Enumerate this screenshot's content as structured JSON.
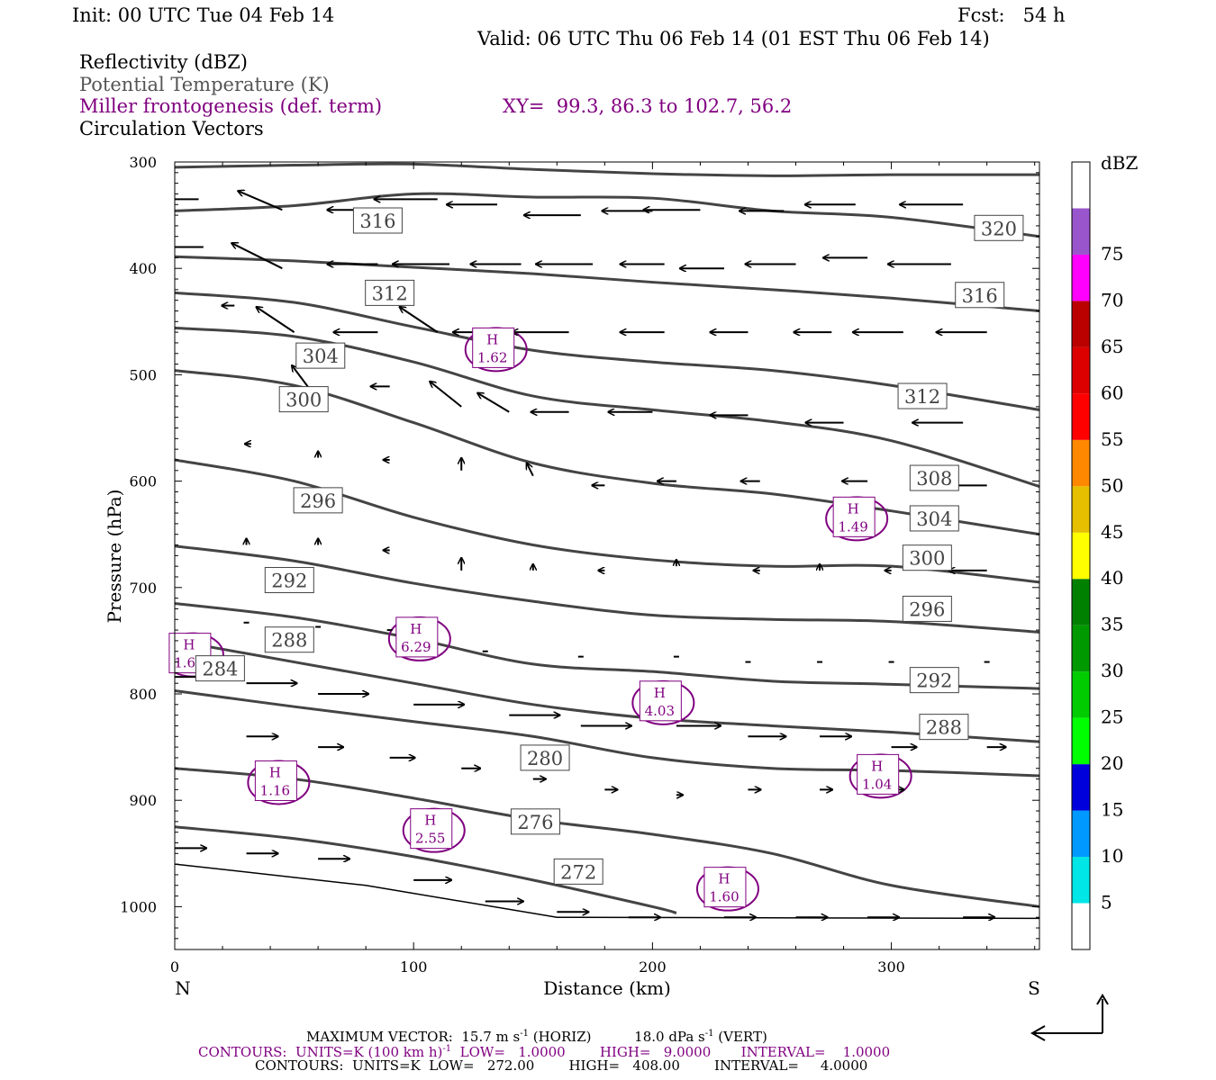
{
  "header": {
    "init": "Init: 00 UTC Tue 04 Feb 14",
    "fcst": "Fcst:   54 h",
    "valid": "Valid: 06 UTC Thu 06 Feb 14 (01 EST Thu 06 Feb 14)",
    "fields": [
      "Reflectivity (dBZ)",
      "Potential Temperature (K)",
      "Miller frontogenesis (def. term)",
      "Circulation Vectors"
    ],
    "xy": "XY=  99.3, 86.3 to 102.7, 56.2"
  },
  "footer": {
    "max_vector_a": "MAXIMUM VECTOR:  15.7 m s",
    "max_vector_a_sup": "-1",
    "max_vector_b": " (HORIZ)          18.0 dPa s",
    "max_vector_b_sup": "-1",
    "max_vector_c": " (VERT)",
    "contours_front_a": "CONTOURS:  UNITS=K (100 km h)",
    "contours_front_sup": "-1",
    "contours_front_b": "  LOW=   1.0000        HIGH=   9.0000       INTERVAL=    1.0000",
    "contours_theta": "CONTOURS:  UNITS=K  LOW=   272.00        HIGH=   408.00        INTERVAL=     4.0000"
  },
  "colors": {
    "theta": "#444444",
    "frontogenesis": "#800080",
    "vector": "#000000"
  },
  "chart_data": {
    "type": "cross-section",
    "xlabel": "Distance (km)",
    "ylabel": "Pressure (hPa)",
    "xlim": [
      0,
      362
    ],
    "ylim": [
      1040,
      300
    ],
    "x_ticks": [
      0,
      100,
      200,
      300
    ],
    "y_ticks": [
      300,
      400,
      500,
      600,
      700,
      800,
      900,
      1000
    ],
    "x_end_labels": {
      "left": "N",
      "right": "S"
    },
    "colorbar": {
      "title": "dBZ",
      "levels": [
        5,
        10,
        15,
        20,
        25,
        30,
        35,
        40,
        45,
        50,
        55,
        60,
        65,
        70,
        75
      ],
      "colors": [
        "#ffffff",
        "#00e5e5",
        "#0099ff",
        "#0000dd",
        "#00ff00",
        "#00cc00",
        "#009900",
        "#008000",
        "#ffff00",
        "#e5bf00",
        "#ff8800",
        "#ff0000",
        "#dd0000",
        "#bb0000",
        "#ff00ff",
        "#9955cc",
        "#ffffff"
      ]
    },
    "theta_contours": [
      {
        "value": 320,
        "points": [
          [
            0,
            305
          ],
          [
            50,
            303
          ],
          [
            100,
            302
          ],
          [
            150,
            307
          ],
          [
            200,
            311
          ],
          [
            250,
            313
          ],
          [
            300,
            312
          ],
          [
            362,
            312
          ]
        ],
        "labels": []
      },
      {
        "value": 316,
        "points": [
          [
            0,
            346
          ],
          [
            50,
            341
          ],
          [
            100,
            330
          ],
          [
            150,
            333
          ],
          [
            200,
            334
          ],
          [
            250,
            346
          ],
          [
            300,
            352
          ],
          [
            362,
            370
          ]
        ],
        "labels": []
      },
      {
        "value": 312,
        "points": [
          [
            0,
            389
          ],
          [
            50,
            393
          ],
          [
            100,
            399
          ],
          [
            150,
            405
          ],
          [
            200,
            413
          ],
          [
            250,
            420
          ],
          [
            300,
            428
          ],
          [
            362,
            440
          ]
        ],
        "labels": []
      },
      {
        "value": 308,
        "points": [
          [
            0,
            423
          ],
          [
            50,
            432
          ],
          [
            100,
            455
          ],
          [
            150,
            477
          ],
          [
            200,
            488
          ],
          [
            250,
            496
          ],
          [
            300,
            510
          ],
          [
            362,
            533
          ]
        ],
        "labels": []
      },
      {
        "value": 304,
        "points": [
          [
            0,
            456
          ],
          [
            50,
            464
          ],
          [
            100,
            488
          ],
          [
            150,
            520
          ],
          [
            200,
            533
          ],
          [
            250,
            544
          ],
          [
            300,
            562
          ],
          [
            362,
            605
          ]
        ],
        "labels": []
      },
      {
        "value": 300,
        "points": [
          [
            0,
            496
          ],
          [
            50,
            510
          ],
          [
            100,
            545
          ],
          [
            150,
            583
          ],
          [
            200,
            602
          ],
          [
            250,
            612
          ],
          [
            300,
            628
          ],
          [
            362,
            650
          ]
        ],
        "labels": []
      },
      {
        "value": 296,
        "points": [
          [
            0,
            580
          ],
          [
            50,
            600
          ],
          [
            100,
            634
          ],
          [
            150,
            660
          ],
          [
            200,
            674
          ],
          [
            250,
            680
          ],
          [
            300,
            680
          ],
          [
            362,
            695
          ]
        ],
        "labels": []
      },
      {
        "value": 292,
        "points": [
          [
            0,
            661
          ],
          [
            50,
            675
          ],
          [
            100,
            696
          ],
          [
            150,
            713
          ],
          [
            200,
            726
          ],
          [
            250,
            730
          ],
          [
            300,
            732
          ],
          [
            362,
            742
          ]
        ],
        "labels": []
      },
      {
        "value": 288,
        "points": [
          [
            0,
            715
          ],
          [
            50,
            728
          ],
          [
            100,
            748
          ],
          [
            150,
            772
          ],
          [
            200,
            779
          ],
          [
            250,
            788
          ],
          [
            300,
            791
          ],
          [
            362,
            795
          ]
        ],
        "labels": []
      },
      {
        "value": 284,
        "points": [
          [
            0,
            750
          ],
          [
            50,
            770
          ],
          [
            100,
            790
          ],
          [
            150,
            810
          ],
          [
            200,
            823
          ],
          [
            250,
            830
          ],
          [
            300,
            836
          ],
          [
            362,
            845
          ]
        ],
        "labels": []
      },
      {
        "value": 280,
        "points": [
          [
            0,
            797
          ],
          [
            50,
            812
          ],
          [
            100,
            826
          ],
          [
            150,
            840
          ],
          [
            200,
            860
          ],
          [
            250,
            870
          ],
          [
            300,
            872
          ],
          [
            362,
            877
          ]
        ],
        "labels": []
      },
      {
        "value": 276,
        "points": [
          [
            0,
            870
          ],
          [
            50,
            880
          ],
          [
            100,
            898
          ],
          [
            150,
            918
          ],
          [
            200,
            932
          ],
          [
            250,
            950
          ],
          [
            300,
            980
          ],
          [
            362,
            1000
          ]
        ],
        "labels": []
      },
      {
        "value": 272,
        "points": [
          [
            0,
            925
          ],
          [
            50,
            936
          ],
          [
            100,
            953
          ],
          [
            150,
            975
          ],
          [
            200,
            1000
          ],
          [
            210,
            1006
          ]
        ],
        "labels": []
      }
    ],
    "terrain": [
      [
        0,
        960
      ],
      [
        80,
        980
      ],
      [
        160,
        1010
      ],
      [
        362,
        1011
      ]
    ],
    "frontogenesis_maxima": [
      {
        "label": "H",
        "value": 1.62,
        "x": 133,
        "p": 478
      },
      {
        "label": "H",
        "value": 1.49,
        "x": 284,
        "p": 637
      },
      {
        "label": "H",
        "value": 6.29,
        "x": 101,
        "p": 750
      },
      {
        "label": "H",
        "value": 1.65,
        "x": 6,
        "p": 765
      },
      {
        "label": "H",
        "value": 4.03,
        "x": 203,
        "p": 810
      },
      {
        "label": "H",
        "value": 1.04,
        "x": 294,
        "p": 879
      },
      {
        "label": "H",
        "value": 1.16,
        "x": 42,
        "p": 885
      },
      {
        "label": "H",
        "value": 2.55,
        "x": 107,
        "p": 930
      },
      {
        "label": "H",
        "value": 1.6,
        "x": 230,
        "p": 985
      }
    ],
    "theta_labels": [
      {
        "text": "316",
        "x": 85,
        "p": 355
      },
      {
        "text": "320",
        "x": 345,
        "p": 362
      },
      {
        "text": "312",
        "x": 90,
        "p": 423
      },
      {
        "text": "316",
        "x": 337,
        "p": 425
      },
      {
        "text": "304",
        "x": 61,
        "p": 482
      },
      {
        "text": "300",
        "x": 54,
        "p": 523
      },
      {
        "text": "312",
        "x": 313,
        "p": 520
      },
      {
        "text": "308",
        "x": 318,
        "p": 597
      },
      {
        "text": "296",
        "x": 60,
        "p": 618
      },
      {
        "text": "304",
        "x": 318,
        "p": 635
      },
      {
        "text": "300",
        "x": 315,
        "p": 672
      },
      {
        "text": "292",
        "x": 48,
        "p": 693
      },
      {
        "text": "296",
        "x": 315,
        "p": 720
      },
      {
        "text": "288",
        "x": 48,
        "p": 749
      },
      {
        "text": "284",
        "x": 19,
        "p": 776
      },
      {
        "text": "292",
        "x": 318,
        "p": 787
      },
      {
        "text": "288",
        "x": 322,
        "p": 831
      },
      {
        "text": "280",
        "x": 155,
        "p": 860
      },
      {
        "text": "276",
        "x": 151,
        "p": 920
      },
      {
        "text": "272",
        "x": 169,
        "p": 967
      }
    ],
    "vectors": [
      [
        10,
        335,
        -8,
        0
      ],
      [
        45,
        345,
        -7,
        -3
      ],
      [
        85,
        345,
        -8,
        0
      ],
      [
        110,
        335,
        -10,
        0
      ],
      [
        135,
        340,
        -8,
        0
      ],
      [
        170,
        350,
        -9,
        0
      ],
      [
        200,
        346,
        -8,
        0
      ],
      [
        220,
        345,
        -9,
        0
      ],
      [
        255,
        346,
        -7,
        0
      ],
      [
        285,
        340,
        -8,
        0
      ],
      [
        330,
        340,
        -10,
        0
      ],
      [
        12,
        380,
        -7,
        0
      ],
      [
        45,
        400,
        -8,
        -4
      ],
      [
        85,
        396,
        -8,
        0
      ],
      [
        115,
        396,
        -9,
        0
      ],
      [
        145,
        396,
        -8,
        0
      ],
      [
        175,
        396,
        -9,
        0
      ],
      [
        205,
        396,
        -7,
        0
      ],
      [
        230,
        400,
        -7,
        0
      ],
      [
        260,
        396,
        -8,
        0
      ],
      [
        290,
        390,
        -7,
        0
      ],
      [
        325,
        396,
        -10,
        0
      ],
      [
        25,
        435,
        -2,
        0
      ],
      [
        50,
        460,
        -6,
        -4
      ],
      [
        85,
        460,
        -7,
        0
      ],
      [
        110,
        460,
        -6,
        -4
      ],
      [
        135,
        460,
        -7,
        0
      ],
      [
        165,
        460,
        -9,
        0
      ],
      [
        205,
        460,
        -7,
        0
      ],
      [
        240,
        460,
        -6,
        0
      ],
      [
        275,
        460,
        -6,
        0
      ],
      [
        305,
        460,
        -8,
        0
      ],
      [
        340,
        460,
        -8,
        0
      ],
      [
        57,
        515,
        -3,
        -4
      ],
      [
        90,
        511,
        -3,
        0
      ],
      [
        120,
        530,
        -5,
        -4
      ],
      [
        140,
        535,
        -5,
        -3
      ],
      [
        165,
        535,
        -6,
        0
      ],
      [
        200,
        535,
        -7,
        0
      ],
      [
        240,
        538,
        -6,
        0
      ],
      [
        280,
        545,
        -6,
        0
      ],
      [
        330,
        545,
        -8,
        0
      ],
      [
        32,
        565,
        -1,
        0
      ],
      [
        60,
        578,
        0,
        -1
      ],
      [
        90,
        580,
        -1,
        0
      ],
      [
        120,
        590,
        0,
        -2
      ],
      [
        150,
        595,
        -1,
        -2
      ],
      [
        180,
        604,
        -2,
        0
      ],
      [
        210,
        600,
        -3,
        0
      ],
      [
        245,
        600,
        -3,
        0
      ],
      [
        290,
        600,
        -4,
        0
      ],
      [
        340,
        604,
        -7,
        0
      ],
      [
        30,
        660,
        0,
        -1
      ],
      [
        60,
        660,
        0,
        -1
      ],
      [
        90,
        665,
        -1,
        0
      ],
      [
        120,
        684,
        0,
        -2
      ],
      [
        150,
        684,
        0,
        -1
      ],
      [
        180,
        684,
        -1,
        0
      ],
      [
        210,
        680,
        0,
        -1
      ],
      [
        245,
        684,
        -1,
        0
      ],
      [
        270,
        684,
        0,
        -1
      ],
      [
        300,
        684,
        -1,
        0
      ],
      [
        340,
        684,
        -6,
        0
      ],
      [
        30,
        733,
        0,
        0
      ],
      [
        60,
        737,
        0,
        0
      ],
      [
        90,
        740,
        0,
        0
      ],
      [
        130,
        760,
        0,
        0
      ],
      [
        170,
        765,
        0,
        0
      ],
      [
        210,
        765,
        0,
        0
      ],
      [
        240,
        770,
        0,
        0
      ],
      [
        270,
        770,
        0,
        0
      ],
      [
        300,
        770,
        0,
        0
      ],
      [
        340,
        770,
        0,
        0
      ],
      [
        0,
        784,
        8,
        0
      ],
      [
        30,
        790,
        8,
        0
      ],
      [
        60,
        800,
        8,
        0
      ],
      [
        100,
        810,
        8,
        0
      ],
      [
        140,
        820,
        8,
        0
      ],
      [
        170,
        830,
        8,
        0
      ],
      [
        210,
        830,
        7,
        0
      ],
      [
        240,
        840,
        6,
        0
      ],
      [
        270,
        840,
        5,
        0
      ],
      [
        300,
        850,
        4,
        0
      ],
      [
        340,
        850,
        3,
        0
      ],
      [
        30,
        840,
        5,
        0
      ],
      [
        60,
        850,
        4,
        0
      ],
      [
        90,
        860,
        4,
        0
      ],
      [
        120,
        870,
        3,
        0
      ],
      [
        150,
        880,
        2,
        0
      ],
      [
        180,
        890,
        2,
        0
      ],
      [
        210,
        895,
        1,
        0
      ],
      [
        240,
        890,
        2,
        0
      ],
      [
        270,
        890,
        2,
        0
      ],
      [
        300,
        890,
        2,
        0
      ],
      [
        0,
        945,
        5,
        0
      ],
      [
        30,
        950,
        5,
        0
      ],
      [
        60,
        955,
        5,
        0
      ],
      [
        100,
        975,
        6,
        0
      ],
      [
        130,
        995,
        6,
        0
      ],
      [
        160,
        1005,
        5,
        0
      ],
      [
        190,
        1010,
        5,
        0
      ],
      [
        230,
        1010,
        5,
        0
      ],
      [
        260,
        1010,
        5,
        0
      ],
      [
        290,
        1010,
        5,
        0
      ],
      [
        330,
        1010,
        5,
        0
      ]
    ]
  }
}
